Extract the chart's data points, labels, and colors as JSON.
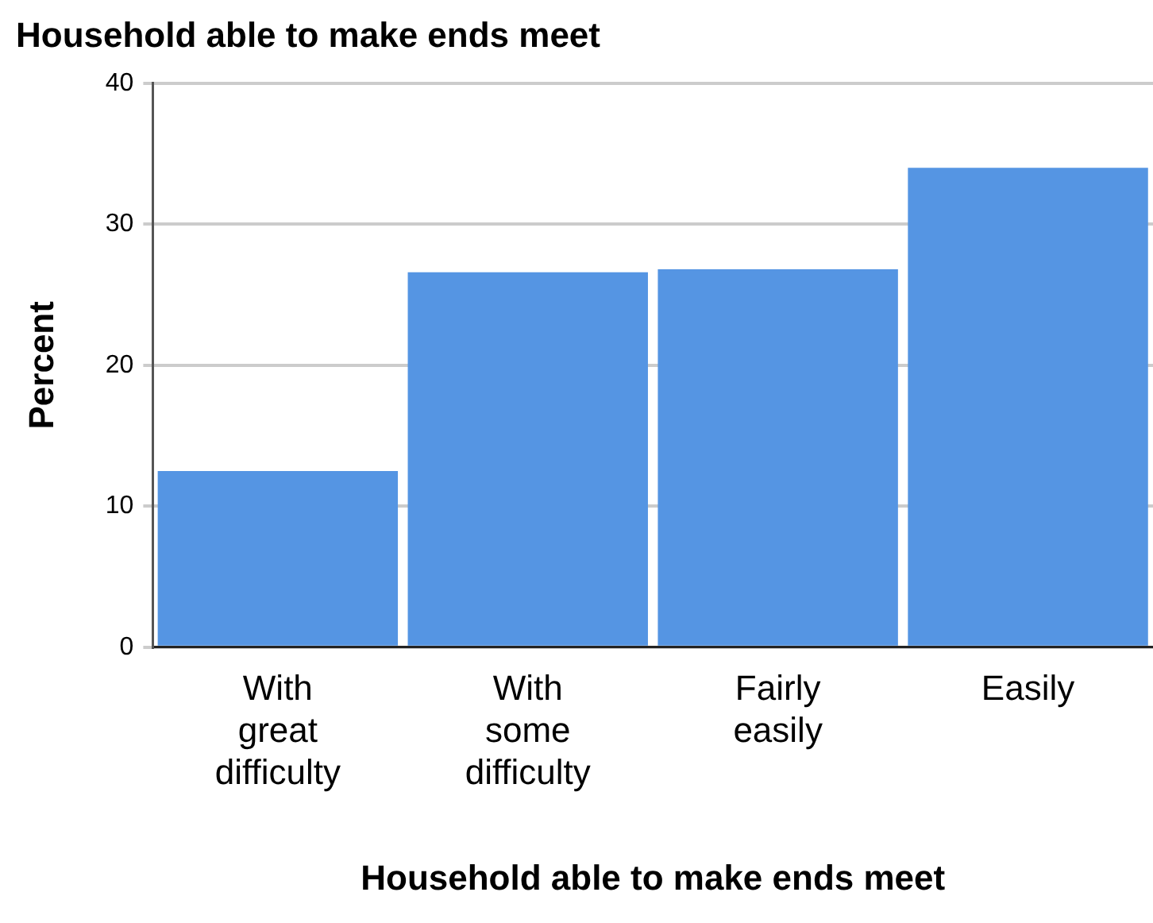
{
  "chart_data": {
    "type": "bar",
    "title": "Household able to make ends meet",
    "xlabel": "Household able to make ends meet",
    "ylabel": "Percent",
    "categories": [
      "With great difficulty",
      "With some difficulty",
      "Fairly easily",
      "Easily"
    ],
    "values": [
      12.5,
      26.6,
      26.8,
      34.0
    ],
    "color": "#5595e3",
    "ylim": [
      0,
      40
    ],
    "yticks": [
      0,
      10,
      20,
      30,
      40
    ],
    "grid": "y",
    "legend": false
  }
}
